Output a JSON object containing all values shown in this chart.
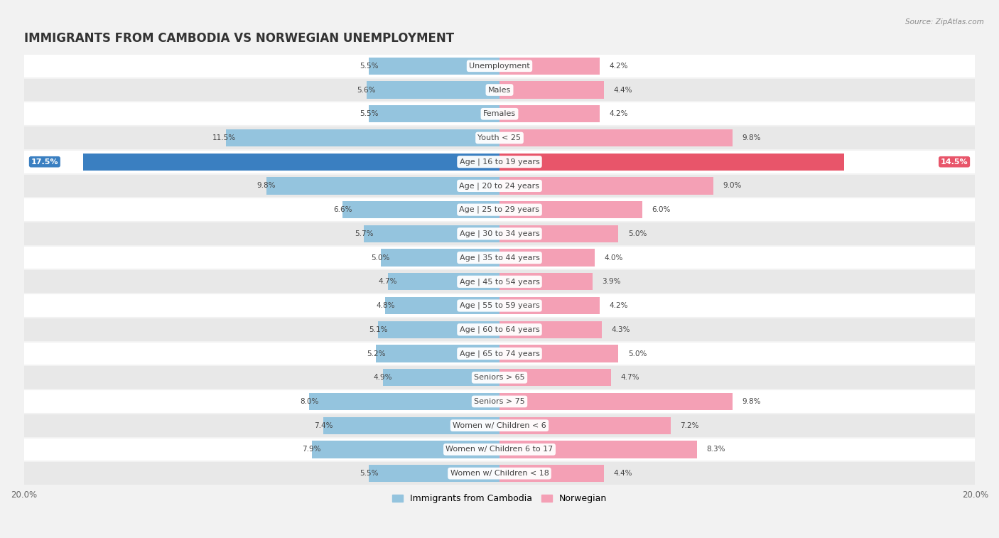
{
  "title": "IMMIGRANTS FROM CAMBODIA VS NORWEGIAN UNEMPLOYMENT",
  "source": "Source: ZipAtlas.com",
  "categories": [
    "Unemployment",
    "Males",
    "Females",
    "Youth < 25",
    "Age | 16 to 19 years",
    "Age | 20 to 24 years",
    "Age | 25 to 29 years",
    "Age | 30 to 34 years",
    "Age | 35 to 44 years",
    "Age | 45 to 54 years",
    "Age | 55 to 59 years",
    "Age | 60 to 64 years",
    "Age | 65 to 74 years",
    "Seniors > 65",
    "Seniors > 75",
    "Women w/ Children < 6",
    "Women w/ Children 6 to 17",
    "Women w/ Children < 18"
  ],
  "cambodia_values": [
    5.5,
    5.6,
    5.5,
    11.5,
    17.5,
    9.8,
    6.6,
    5.7,
    5.0,
    4.7,
    4.8,
    5.1,
    5.2,
    4.9,
    8.0,
    7.4,
    7.9,
    5.5
  ],
  "norwegian_values": [
    4.2,
    4.4,
    4.2,
    9.8,
    14.5,
    9.0,
    6.0,
    5.0,
    4.0,
    3.9,
    4.2,
    4.3,
    5.0,
    4.7,
    9.8,
    7.2,
    8.3,
    4.4
  ],
  "cambodia_color": "#94c4de",
  "norwegian_color": "#f4a0b5",
  "highlight_cambodia_color": "#3a7fc1",
  "highlight_norwegian_color": "#e8556a",
  "highlight_index": 4,
  "xlim": 20.0,
  "bar_height": 0.72,
  "background_color": "#f2f2f2",
  "row_color_even": "#ffffff",
  "row_color_odd": "#e8e8e8",
  "title_fontsize": 12,
  "label_fontsize": 8.0,
  "value_fontsize": 7.5,
  "legend_fontsize": 9,
  "x_tick_label": "20.0%"
}
